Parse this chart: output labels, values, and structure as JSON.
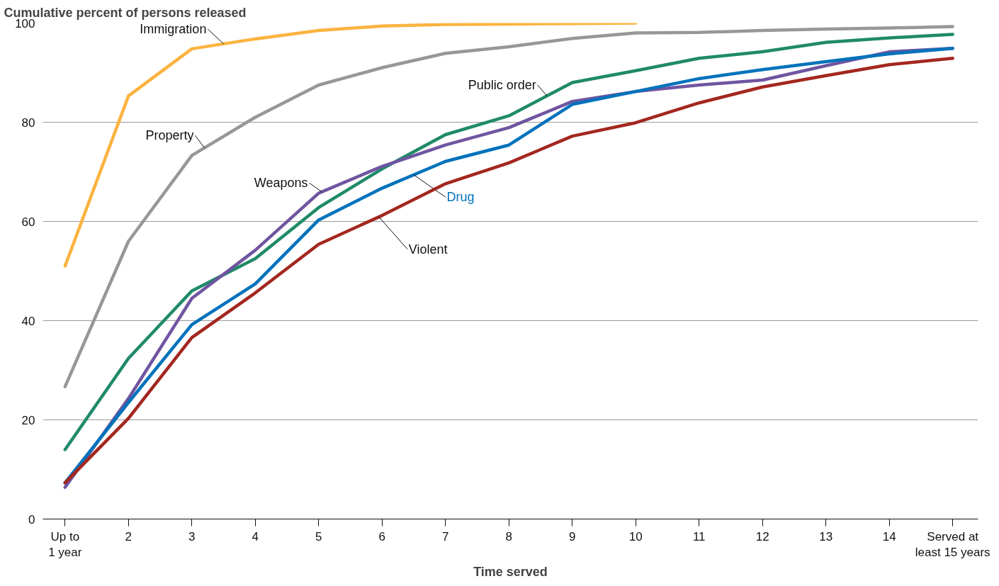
{
  "chart_data": {
    "type": "line",
    "ylabel": "Cumulative percent of persons released",
    "xlabel": "Time served",
    "categories": [
      "Up to\n1 year",
      "2",
      "3",
      "4",
      "5",
      "6",
      "7",
      "8",
      "9",
      "10",
      "11",
      "12",
      "13",
      "14",
      "Served at\nleast 15 years"
    ],
    "ylim": [
      0,
      100
    ],
    "yticks": [
      0,
      20,
      40,
      60,
      80,
      100
    ],
    "grid": "y",
    "marker": "none",
    "line_style": "solid",
    "series": [
      {
        "name": "Immigration",
        "color": "#fbb33f",
        "values": [
          51,
          85.3,
          94.8,
          96.8,
          98.5,
          99.4,
          99.7,
          99.8,
          99.9,
          100,
          null,
          null,
          null,
          null,
          null
        ]
      },
      {
        "name": "Property",
        "color": "#97979b",
        "values": [
          26.7,
          56,
          73.3,
          81,
          87.5,
          91,
          93.9,
          95.2,
          96.9,
          98,
          98.1,
          98.5,
          98.8,
          99,
          99.3
        ]
      },
      {
        "name": "Public order",
        "color": "#1f8a6a",
        "values": [
          14,
          32.4,
          46,
          52.5,
          62.8,
          70.6,
          77.5,
          81.3,
          88,
          90.4,
          92.9,
          94.2,
          96.1,
          97,
          97.7
        ]
      },
      {
        "name": "Weapons",
        "color": "#6f55a0",
        "values": [
          6.4,
          24.3,
          44.5,
          54.2,
          65.7,
          71.1,
          75.4,
          78.9,
          84.2,
          86.2,
          87.5,
          88.5,
          91.4,
          94.2,
          94.9
        ]
      },
      {
        "name": "Drug",
        "color": "#0072bb",
        "values": [
          7.3,
          23.5,
          39.2,
          47.4,
          60.3,
          66.7,
          72.1,
          75.4,
          83.6,
          86.2,
          88.8,
          90.6,
          92.2,
          93.8,
          94.9
        ]
      },
      {
        "name": "Violent",
        "color": "#a3271f",
        "values": [
          7.3,
          20.3,
          36.6,
          45.6,
          55.4,
          61.2,
          67.6,
          71.8,
          77.2,
          79.9,
          83.9,
          87.1,
          89.4,
          91.6,
          92.9
        ]
      }
    ]
  }
}
